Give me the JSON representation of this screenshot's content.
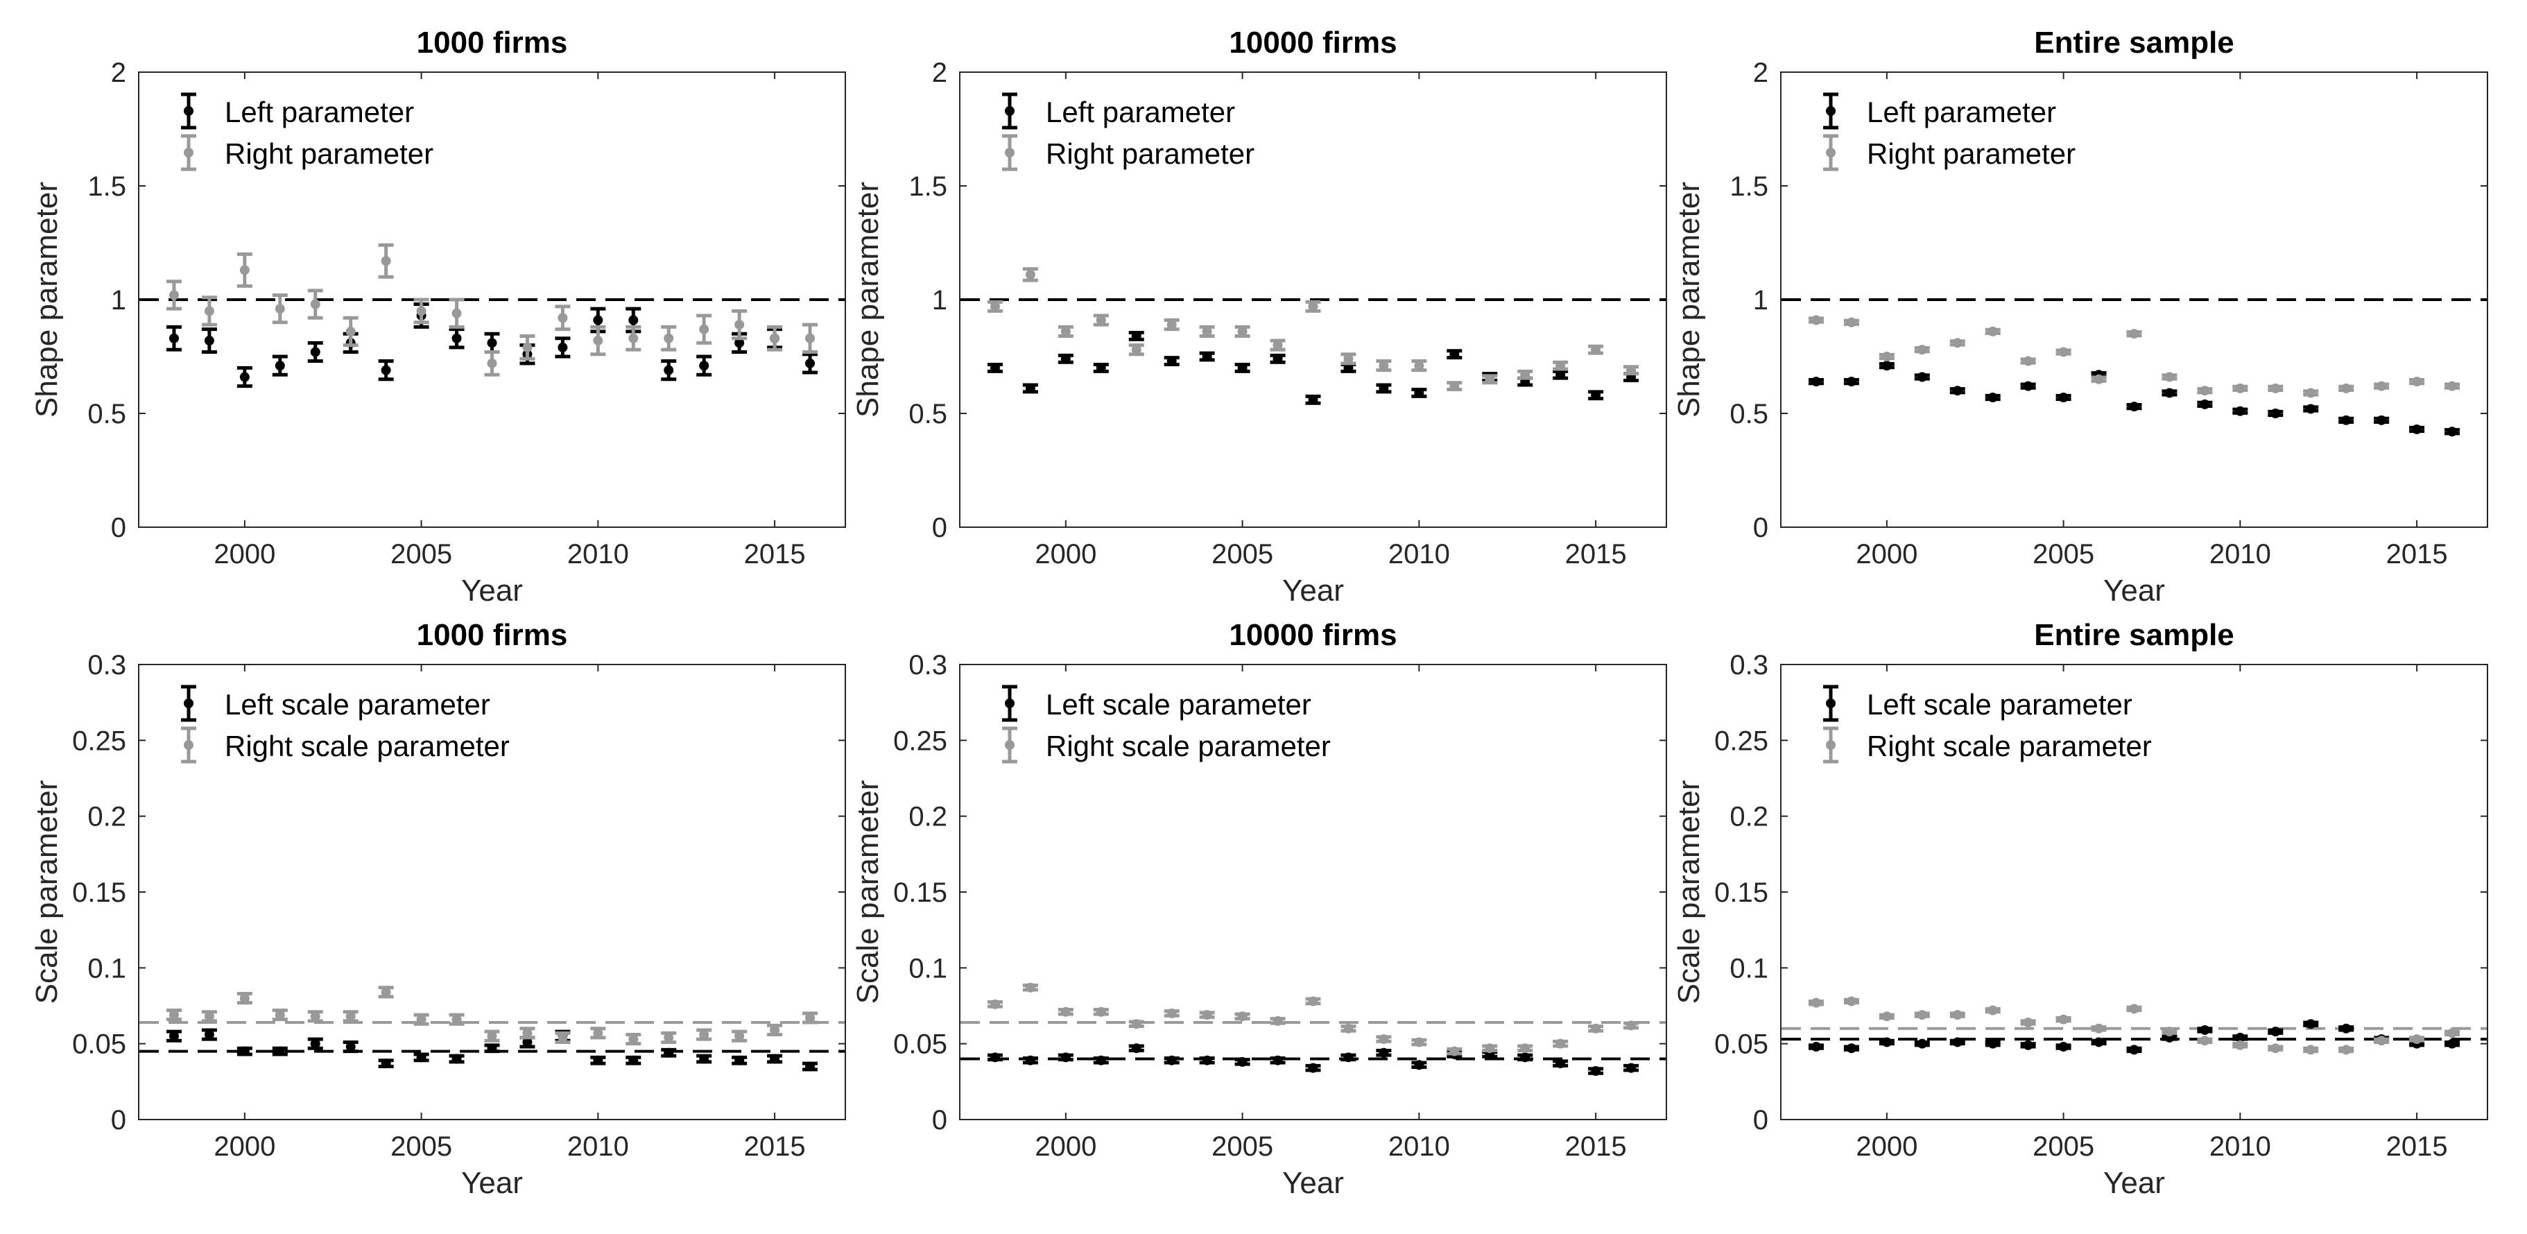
{
  "chart_data": [
    {
      "type": "scatter",
      "title": "1000 firms",
      "xlabel": "Year",
      "ylabel": "Shape parameter",
      "xlim": [
        1997,
        2017
      ],
      "ylim": [
        0,
        2
      ],
      "yticks": [
        "0",
        "0.5",
        "1",
        "1.5",
        "2"
      ],
      "xticks": [
        "2000",
        "2005",
        "2010",
        "2015"
      ],
      "xtick_values": [
        2000,
        2005,
        2010,
        2015
      ],
      "ytick_values": [
        0,
        0.5,
        1,
        1.5,
        2
      ],
      "legend_position": "top-left",
      "ref_lines": [
        {
          "value": 1,
          "color": "#000000"
        }
      ],
      "x": [
        1998,
        1999,
        2000,
        2001,
        2002,
        2003,
        2004,
        2005,
        2006,
        2007,
        2008,
        2009,
        2010,
        2011,
        2012,
        2013,
        2014,
        2015,
        2016
      ],
      "series": [
        {
          "name": "Left parameter",
          "color": "#000000",
          "values": [
            0.83,
            0.82,
            0.66,
            0.71,
            0.77,
            0.81,
            0.69,
            0.93,
            0.83,
            0.81,
            0.76,
            0.79,
            0.91,
            0.91,
            0.69,
            0.71,
            0.81,
            0.83,
            0.72
          ],
          "err": [
            0.05,
            0.05,
            0.04,
            0.04,
            0.04,
            0.04,
            0.04,
            0.05,
            0.04,
            0.04,
            0.04,
            0.04,
            0.05,
            0.05,
            0.04,
            0.04,
            0.04,
            0.04,
            0.04
          ]
        },
        {
          "name": "Right parameter",
          "color": "#999999",
          "values": [
            1.02,
            0.95,
            1.13,
            0.96,
            0.98,
            0.86,
            1.17,
            0.95,
            0.94,
            0.72,
            0.79,
            0.92,
            0.82,
            0.83,
            0.83,
            0.87,
            0.89,
            0.83,
            0.83
          ],
          "err": [
            0.06,
            0.06,
            0.07,
            0.06,
            0.06,
            0.06,
            0.07,
            0.05,
            0.06,
            0.05,
            0.05,
            0.05,
            0.06,
            0.05,
            0.05,
            0.06,
            0.06,
            0.05,
            0.06
          ]
        }
      ]
    },
    {
      "type": "scatter",
      "title": "10000 firms",
      "xlabel": "Year",
      "ylabel": "Shape parameter",
      "xlim": [
        1997,
        2017
      ],
      "ylim": [
        0,
        2
      ],
      "yticks": [
        "0",
        "0.5",
        "1",
        "1.5",
        "2"
      ],
      "xticks": [
        "2000",
        "2005",
        "2010",
        "2015"
      ],
      "xtick_values": [
        2000,
        2005,
        2010,
        2015
      ],
      "ytick_values": [
        0,
        0.5,
        1,
        1.5,
        2
      ],
      "legend_position": "top-left",
      "ref_lines": [
        {
          "value": 1,
          "color": "#000000"
        }
      ],
      "x": [
        1998,
        1999,
        2000,
        2001,
        2002,
        2003,
        2004,
        2005,
        2006,
        2007,
        2008,
        2009,
        2010,
        2011,
        2012,
        2013,
        2014,
        2015,
        2016
      ],
      "series": [
        {
          "name": "Left parameter",
          "color": "#000000",
          "values": [
            0.7,
            0.61,
            0.74,
            0.7,
            0.84,
            0.73,
            0.75,
            0.7,
            0.74,
            0.56,
            0.7,
            0.61,
            0.59,
            0.76,
            0.66,
            0.64,
            0.67,
            0.58,
            0.66
          ],
          "err": [
            0.015,
            0.015,
            0.015,
            0.015,
            0.015,
            0.015,
            0.015,
            0.015,
            0.015,
            0.015,
            0.015,
            0.015,
            0.015,
            0.015,
            0.015,
            0.015,
            0.015,
            0.015,
            0.015
          ]
        },
        {
          "name": "Right parameter",
          "color": "#999999",
          "values": [
            0.97,
            1.11,
            0.86,
            0.91,
            0.78,
            0.89,
            0.86,
            0.86,
            0.8,
            0.97,
            0.74,
            0.71,
            0.71,
            0.62,
            0.65,
            0.67,
            0.71,
            0.78,
            0.69
          ],
          "err": [
            0.02,
            0.025,
            0.02,
            0.02,
            0.02,
            0.02,
            0.02,
            0.02,
            0.02,
            0.02,
            0.02,
            0.02,
            0.02,
            0.015,
            0.015,
            0.015,
            0.015,
            0.015,
            0.015
          ]
        }
      ]
    },
    {
      "type": "scatter",
      "title": "Entire sample",
      "xlabel": "Year",
      "ylabel": "Shape parameter",
      "xlim": [
        1997,
        2017
      ],
      "ylim": [
        0,
        2
      ],
      "yticks": [
        "0",
        "0.5",
        "1",
        "1.5",
        "2"
      ],
      "xticks": [
        "2000",
        "2005",
        "2010",
        "2015"
      ],
      "xtick_values": [
        2000,
        2005,
        2010,
        2015
      ],
      "ytick_values": [
        0,
        0.5,
        1,
        1.5,
        2
      ],
      "legend_position": "top-left",
      "ref_lines": [
        {
          "value": 1,
          "color": "#000000"
        }
      ],
      "x": [
        1998,
        1999,
        2000,
        2001,
        2002,
        2003,
        2004,
        2005,
        2006,
        2007,
        2008,
        2009,
        2010,
        2011,
        2012,
        2013,
        2014,
        2015,
        2016
      ],
      "series": [
        {
          "name": "Left parameter",
          "color": "#000000",
          "values": [
            0.64,
            0.64,
            0.71,
            0.66,
            0.6,
            0.57,
            0.62,
            0.57,
            0.67,
            0.53,
            0.59,
            0.54,
            0.51,
            0.5,
            0.52,
            0.47,
            0.47,
            0.43,
            0.42
          ],
          "err": [
            0.008,
            0.008,
            0.008,
            0.008,
            0.008,
            0.008,
            0.008,
            0.008,
            0.008,
            0.008,
            0.008,
            0.008,
            0.008,
            0.008,
            0.008,
            0.008,
            0.008,
            0.008,
            0.008
          ]
        },
        {
          "name": "Right parameter",
          "color": "#999999",
          "values": [
            0.91,
            0.9,
            0.75,
            0.78,
            0.81,
            0.86,
            0.73,
            0.77,
            0.65,
            0.85,
            0.66,
            0.6,
            0.61,
            0.61,
            0.59,
            0.61,
            0.62,
            0.64,
            0.62
          ],
          "err": [
            0.008,
            0.008,
            0.008,
            0.008,
            0.008,
            0.008,
            0.008,
            0.008,
            0.008,
            0.008,
            0.008,
            0.008,
            0.008,
            0.008,
            0.008,
            0.008,
            0.008,
            0.008,
            0.008
          ]
        }
      ]
    },
    {
      "type": "scatter",
      "title": "1000 firms",
      "xlabel": "Year",
      "ylabel": "Scale parameter",
      "xlim": [
        1997,
        2017
      ],
      "ylim": [
        0,
        0.3
      ],
      "yticks": [
        "0",
        "0.05",
        "0.1",
        "0.15",
        "0.2",
        "0.25",
        "0.3"
      ],
      "xticks": [
        "2000",
        "2005",
        "2010",
        "2015"
      ],
      "xtick_values": [
        2000,
        2005,
        2010,
        2015
      ],
      "ytick_values": [
        0,
        0.05,
        0.1,
        0.15,
        0.2,
        0.25,
        0.3
      ],
      "legend_position": "top-left",
      "ref_lines": [
        {
          "value": 0.045,
          "color": "#000000"
        },
        {
          "value": 0.064,
          "color": "#999999"
        }
      ],
      "x": [
        1998,
        1999,
        2000,
        2001,
        2002,
        2003,
        2004,
        2005,
        2006,
        2007,
        2008,
        2009,
        2010,
        2011,
        2012,
        2013,
        2014,
        2015,
        2016
      ],
      "series": [
        {
          "name": "Left scale parameter",
          "color": "#000000",
          "values": [
            0.055,
            0.056,
            0.045,
            0.045,
            0.05,
            0.048,
            0.037,
            0.041,
            0.04,
            0.047,
            0.051,
            0.055,
            0.039,
            0.039,
            0.044,
            0.04,
            0.039,
            0.04,
            0.035
          ],
          "err": [
            0.003,
            0.003,
            0.002,
            0.002,
            0.003,
            0.003,
            0.002,
            0.002,
            0.002,
            0.002,
            0.003,
            0.003,
            0.002,
            0.002,
            0.002,
            0.002,
            0.002,
            0.002,
            0.002
          ]
        },
        {
          "name": "Right scale parameter",
          "color": "#999999",
          "values": [
            0.069,
            0.068,
            0.08,
            0.069,
            0.068,
            0.068,
            0.084,
            0.066,
            0.066,
            0.055,
            0.057,
            0.054,
            0.057,
            0.053,
            0.054,
            0.056,
            0.055,
            0.059,
            0.067
          ],
          "err": [
            0.003,
            0.003,
            0.003,
            0.003,
            0.003,
            0.003,
            0.003,
            0.003,
            0.003,
            0.003,
            0.003,
            0.003,
            0.003,
            0.003,
            0.003,
            0.003,
            0.003,
            0.003,
            0.003
          ]
        }
      ]
    },
    {
      "type": "scatter",
      "title": "10000 firms",
      "xlabel": "Year",
      "ylabel": "Scale parameter",
      "xlim": [
        1997,
        2017
      ],
      "ylim": [
        0,
        0.3
      ],
      "yticks": [
        "0",
        "0.05",
        "0.1",
        "0.15",
        "0.2",
        "0.25",
        "0.3"
      ],
      "xticks": [
        "2000",
        "2005",
        "2010",
        "2015"
      ],
      "xtick_values": [
        2000,
        2005,
        2010,
        2015
      ],
      "ytick_values": [
        0,
        0.05,
        0.1,
        0.15,
        0.2,
        0.25,
        0.3
      ],
      "legend_position": "top-left",
      "ref_lines": [
        {
          "value": 0.04,
          "color": "#000000"
        },
        {
          "value": 0.064,
          "color": "#999999"
        }
      ],
      "x": [
        1998,
        1999,
        2000,
        2001,
        2002,
        2003,
        2004,
        2005,
        2006,
        2007,
        2008,
        2009,
        2010,
        2011,
        2012,
        2013,
        2014,
        2015,
        2016
      ],
      "series": [
        {
          "name": "Left scale parameter",
          "color": "#000000",
          "values": [
            0.041,
            0.039,
            0.041,
            0.039,
            0.047,
            0.039,
            0.039,
            0.038,
            0.039,
            0.034,
            0.041,
            0.044,
            0.036,
            0.043,
            0.043,
            0.041,
            0.037,
            0.032,
            0.034
          ],
          "err": [
            0.0015,
            0.0015,
            0.0015,
            0.0015,
            0.0015,
            0.0015,
            0.0015,
            0.0015,
            0.0015,
            0.0015,
            0.0015,
            0.0015,
            0.0015,
            0.0015,
            0.0015,
            0.0015,
            0.0015,
            0.0015,
            0.0015
          ]
        },
        {
          "name": "Right scale parameter",
          "color": "#999999",
          "values": [
            0.076,
            0.087,
            0.071,
            0.071,
            0.063,
            0.07,
            0.069,
            0.068,
            0.065,
            0.078,
            0.06,
            0.053,
            0.051,
            0.045,
            0.047,
            0.047,
            0.05,
            0.06,
            0.062
          ],
          "err": [
            0.0015,
            0.0015,
            0.0015,
            0.0015,
            0.0015,
            0.0015,
            0.0015,
            0.0015,
            0.0015,
            0.0015,
            0.0015,
            0.0015,
            0.0015,
            0.0015,
            0.0015,
            0.0015,
            0.0015,
            0.0015,
            0.0015
          ]
        }
      ]
    },
    {
      "type": "scatter",
      "title": "Entire sample",
      "xlabel": "Year",
      "ylabel": "Scale parameter",
      "xlim": [
        1997,
        2017
      ],
      "ylim": [
        0,
        0.3
      ],
      "yticks": [
        "0",
        "0.05",
        "0.1",
        "0.15",
        "0.2",
        "0.25",
        "0.3"
      ],
      "xticks": [
        "2000",
        "2005",
        "2010",
        "2015"
      ],
      "xtick_values": [
        2000,
        2005,
        2010,
        2015
      ],
      "ytick_values": [
        0,
        0.05,
        0.1,
        0.15,
        0.2,
        0.25,
        0.3
      ],
      "legend_position": "top-left",
      "ref_lines": [
        {
          "value": 0.053,
          "color": "#000000"
        },
        {
          "value": 0.06,
          "color": "#999999"
        }
      ],
      "x": [
        1998,
        1999,
        2000,
        2001,
        2002,
        2003,
        2004,
        2005,
        2006,
        2007,
        2008,
        2009,
        2010,
        2011,
        2012,
        2013,
        2014,
        2015,
        2016
      ],
      "series": [
        {
          "name": "Left scale parameter",
          "color": "#000000",
          "values": [
            0.048,
            0.047,
            0.051,
            0.05,
            0.051,
            0.05,
            0.049,
            0.048,
            0.051,
            0.046,
            0.054,
            0.059,
            0.054,
            0.058,
            0.063,
            0.06,
            0.053,
            0.05,
            0.05
          ],
          "err": [
            0.001,
            0.001,
            0.001,
            0.001,
            0.001,
            0.001,
            0.001,
            0.001,
            0.001,
            0.001,
            0.001,
            0.001,
            0.001,
            0.001,
            0.001,
            0.001,
            0.001,
            0.001,
            0.001
          ]
        },
        {
          "name": "Right scale parameter",
          "color": "#999999",
          "values": [
            0.077,
            0.078,
            0.068,
            0.069,
            0.069,
            0.072,
            0.064,
            0.066,
            0.06,
            0.073,
            0.058,
            0.052,
            0.049,
            0.047,
            0.046,
            0.046,
            0.052,
            0.053,
            0.057
          ],
          "err": [
            0.001,
            0.001,
            0.001,
            0.001,
            0.001,
            0.001,
            0.001,
            0.001,
            0.001,
            0.001,
            0.001,
            0.001,
            0.001,
            0.001,
            0.001,
            0.001,
            0.001,
            0.001,
            0.001
          ]
        }
      ]
    }
  ]
}
